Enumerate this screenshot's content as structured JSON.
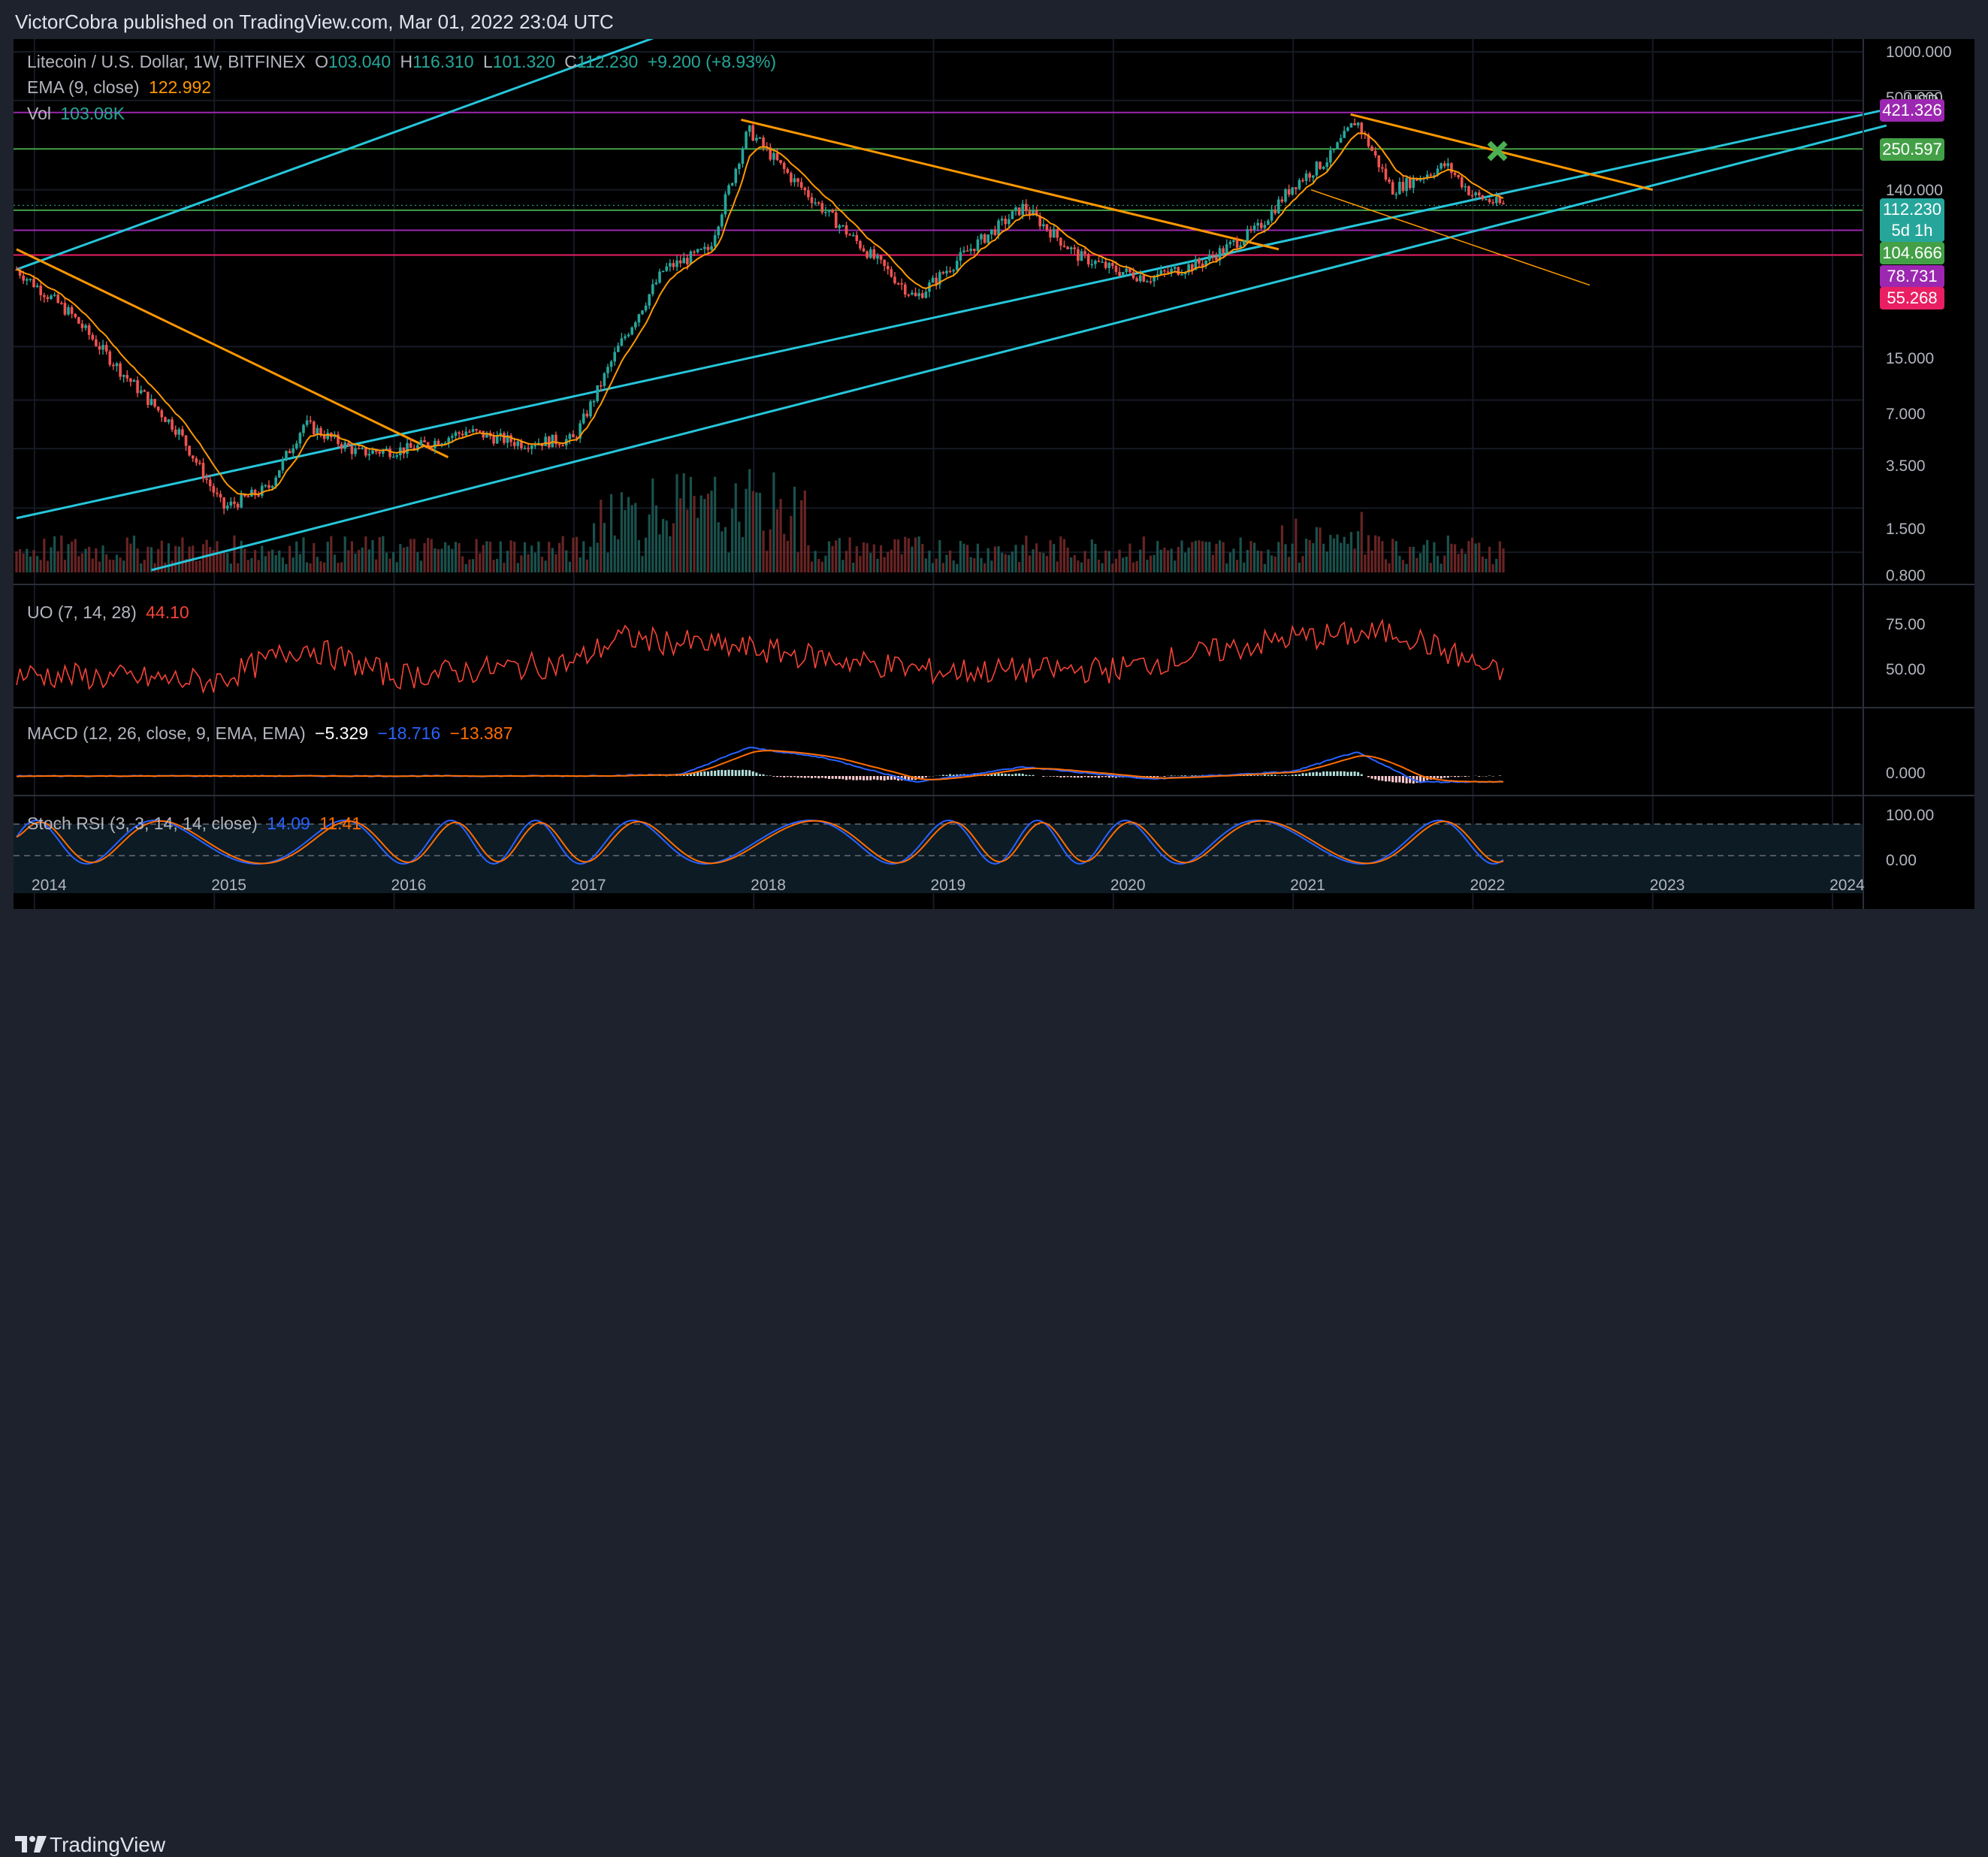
{
  "header": {
    "publisher_text": "VictorCobra published on TradingView.com, Mar 01, 2022 23:04 UTC"
  },
  "footer": {
    "brand": "TradingView"
  },
  "legend": {
    "symbol": "Litecoin / U.S. Dollar, 1W, BITFINEX",
    "open_label": "O",
    "open": "103.040",
    "high_label": "H",
    "high": "116.310",
    "low_label": "L",
    "low": "101.320",
    "close_label": "C",
    "close": "112.230",
    "change": "+9.200 (+8.93%)",
    "ema_label": "EMA (9, close)",
    "ema_value": "122.992",
    "vol_label": "Vol",
    "vol_value": "103.08K"
  },
  "indicators": {
    "uo_label": "UO (7, 14, 28)",
    "uo_value": "44.10",
    "macd_label": "MACD (12, 26, close, 9, EMA, EMA)",
    "macd_hist": "−5.329",
    "macd_line": "−18.716",
    "macd_signal": "−13.387",
    "stoch_label": "Stoch RSI (3, 3, 14, 14, close)",
    "stoch_k": "14.09",
    "stoch_d": "11.41"
  },
  "price_scale": {
    "currency": "USD",
    "ticks": [
      "1000.000",
      "500.000",
      "140.000",
      "15.000",
      "7.000",
      "3.500",
      "1.500",
      "0.800"
    ]
  },
  "price_labels": [
    {
      "value": "421.326",
      "color": "#9c27b0"
    },
    {
      "value": "250.597",
      "color": "#43a047"
    },
    {
      "value": "112.230",
      "color": "#26a69a"
    },
    {
      "value": "5d 1h",
      "color": "#26a69a"
    },
    {
      "value": "104.666",
      "color": "#43a047"
    },
    {
      "value": "78.731",
      "color": "#9c27b0"
    },
    {
      "value": "55.268",
      "color": "#e91e63"
    }
  ],
  "uo_scale": {
    "ticks": [
      "75.00",
      "50.00"
    ]
  },
  "macd_scale": {
    "ticks": [
      "0.000"
    ]
  },
  "stoch_scale": {
    "ticks": [
      "100.00",
      "0.00"
    ]
  },
  "time_axis": [
    "2014",
    "2015",
    "2016",
    "2017",
    "2018",
    "2019",
    "2020",
    "2021",
    "2022",
    "2023",
    "2024"
  ],
  "chart_data": {
    "type": "line",
    "title": "Litecoin / U.S. Dollar, 1W, BITFINEX",
    "yscale": "log",
    "colors": {
      "up": "#26a69a",
      "down": "#ef5350",
      "ema": "#ff9800",
      "channel": "#26c6da",
      "trend": "#ff9800",
      "uo": "#f44336",
      "macd": "#2962ff",
      "signal": "#ff6d00",
      "stoch_k": "#2962ff",
      "stoch_d": "#ff6d00"
    },
    "series": [
      {
        "name": "Litecoin / U.S. Dollar",
        "x": [
          2013.9,
          2014.2,
          2014.5,
          2014.8,
          2015.05,
          2015.3,
          2015.5,
          2015.8,
          2016.1,
          2016.4,
          2016.7,
          2017.0,
          2017.25,
          2017.5,
          2017.75,
          2017.97,
          2018.2,
          2018.5,
          2018.9,
          2019.2,
          2019.5,
          2019.8,
          2020.0,
          2020.2,
          2020.5,
          2020.8,
          2021.0,
          2021.2,
          2021.35,
          2021.55,
          2021.85,
          2022.0,
          2022.17
        ],
        "values": [
          45,
          24,
          10,
          4.5,
          1.5,
          2.0,
          5.0,
          3.3,
          3.5,
          4.5,
          3.8,
          4.0,
          15,
          45,
          60,
          330,
          170,
          80,
          30,
          60,
          110,
          55,
          45,
          40,
          50,
          80,
          150,
          220,
          380,
          140,
          200,
          130,
          112.23
        ]
      },
      {
        "name": "EMA (9, close)",
        "x": [
          2013.9,
          2014.5,
          2015.05,
          2015.5,
          2016.1,
          2016.7,
          2017.25,
          2017.75,
          2017.97,
          2018.5,
          2018.9,
          2019.5,
          2020.0,
          2020.5,
          2021.0,
          2021.35,
          2021.85,
          2022.17
        ],
        "values": [
          40,
          12,
          2.0,
          3.8,
          3.5,
          3.9,
          12,
          55,
          220,
          100,
          35,
          95,
          52,
          50,
          130,
          330,
          190,
          122.992
        ]
      }
    ],
    "horizontal_levels": [
      421.326,
      250.597,
      104.666,
      78.731,
      55.268
    ],
    "uo": {
      "x": [
        2014,
        2015,
        2015.5,
        2016,
        2017,
        2017.25,
        2018,
        2019,
        2020,
        2021,
        2021.6,
        2022.17
      ],
      "values": [
        45,
        41,
        62,
        44,
        52,
        67,
        60,
        47,
        48,
        67,
        70,
        44.1
      ],
      "ylim": [
        30,
        90
      ]
    },
    "macd": {
      "x": [
        2014,
        2017,
        2017.6,
        2017.97,
        2018.4,
        2018.9,
        2019.5,
        2020.2,
        2021.0,
        2021.35,
        2021.7,
        2022.17
      ],
      "values": [
        0,
        0,
        5,
        95,
        60,
        -20,
        30,
        -10,
        15,
        80,
        -20,
        -18.716
      ]
    },
    "stoch_rsi": {
      "ylim": [
        0,
        100
      ],
      "k_last": 14.09,
      "d_last": 11.41
    }
  }
}
